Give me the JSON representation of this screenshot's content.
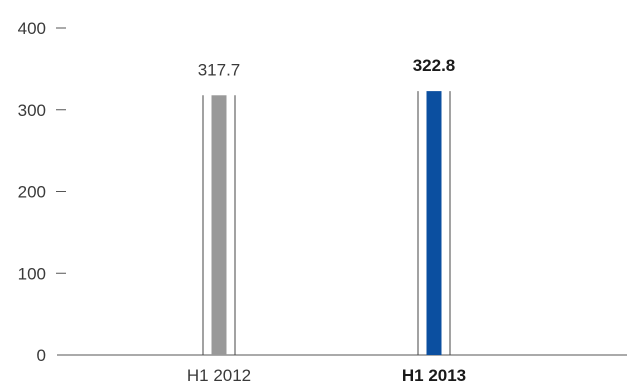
{
  "chart_data": {
    "type": "bar",
    "categories": [
      "H1 2012",
      "H1 2013"
    ],
    "values": [
      317.7,
      322.8
    ],
    "value_labels": [
      "317.7",
      "322.8"
    ],
    "y_ticks": [
      "0",
      "100",
      "200",
      "300",
      "400"
    ],
    "ylim": [
      0,
      400
    ],
    "grid": false,
    "bar_colors": [
      "#999999",
      "#0b4fa0"
    ],
    "emphasized": [
      false,
      true
    ]
  }
}
